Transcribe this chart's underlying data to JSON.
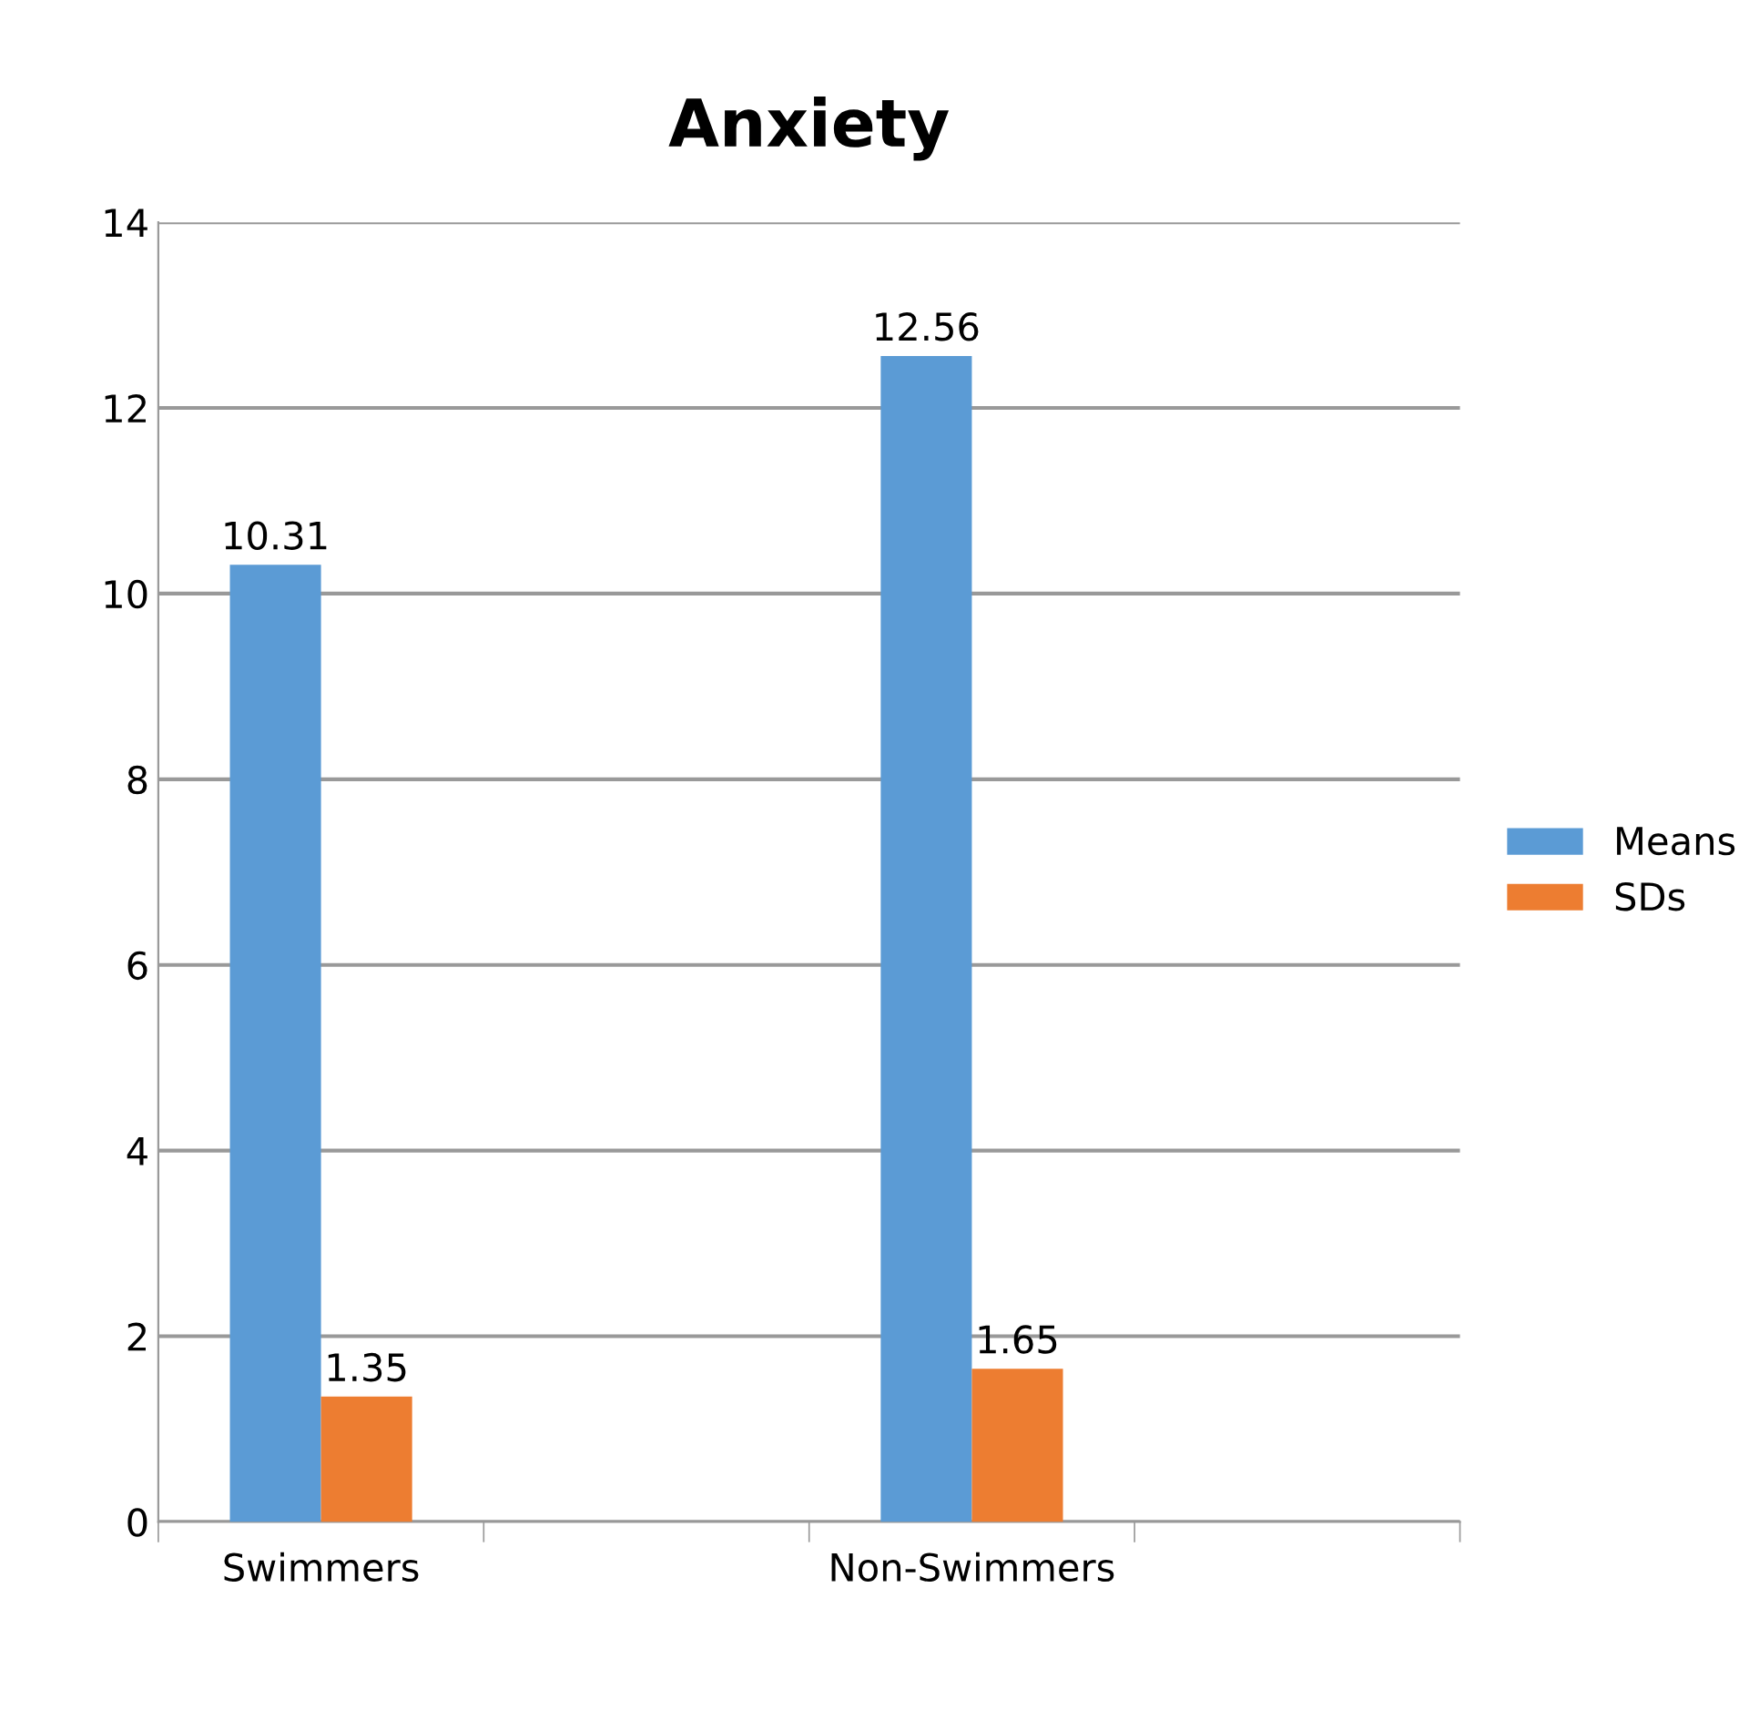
{
  "chart_data": {
    "type": "bar",
    "title": "Anxiety",
    "categories": [
      "Swimmers",
      null,
      "Non-Swimmers",
      null
    ],
    "series": [
      {
        "name": "Means",
        "color": "#5b9bd5",
        "values": [
          10.31,
          null,
          12.56,
          null
        ]
      },
      {
        "name": "SDs",
        "color": "#ed7d31",
        "values": [
          1.35,
          null,
          1.65,
          null
        ]
      }
    ],
    "ylim": [
      0,
      14
    ],
    "yticks": [
      0,
      2,
      4,
      6,
      8,
      10,
      12,
      14
    ],
    "grid": "y",
    "legend": "right",
    "data_labels": true
  }
}
